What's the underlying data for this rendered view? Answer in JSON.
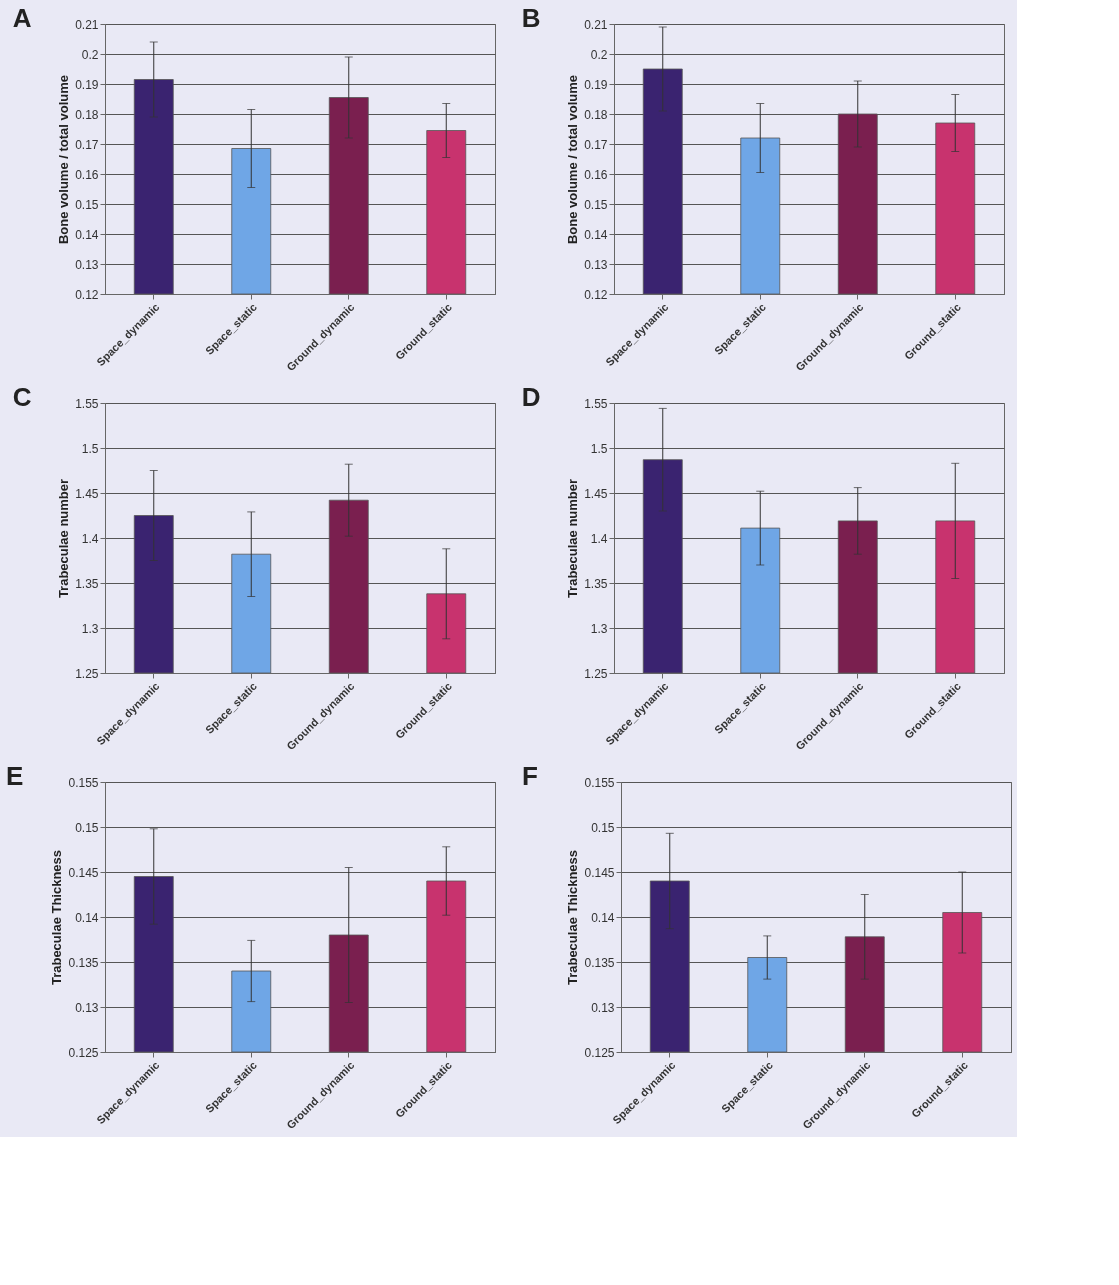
{
  "chart_data": [
    {
      "type": "bar",
      "title": "A",
      "ylabel": "Bone volume / total volume",
      "categories": [
        "Space_dynamic",
        "Space_static",
        "Ground_dynamic",
        "Ground_static"
      ],
      "values": [
        0.1915,
        0.1685,
        0.1855,
        0.1745
      ],
      "errors": [
        0.0125,
        0.013,
        0.0135,
        0.009
      ],
      "colors": [
        "#3a2370",
        "#6fa6e6",
        "#7a1f4f",
        "#c8336e"
      ],
      "ylim": [
        0.12,
        0.21
      ],
      "yticks": [
        0.12,
        0.13,
        0.14,
        0.15,
        0.16,
        0.17,
        0.18,
        0.19,
        0.2,
        0.21
      ],
      "grid": "y"
    },
    {
      "type": "bar",
      "title": "B",
      "ylabel": "Bone volume / total volume",
      "categories": [
        "Space_dynamic",
        "Space_static",
        "Ground_dynamic",
        "Ground_static"
      ],
      "values": [
        0.195,
        0.172,
        0.18,
        0.177
      ],
      "errors": [
        0.014,
        0.0115,
        0.011,
        0.0095
      ],
      "colors": [
        "#3a2370",
        "#6fa6e6",
        "#7a1f4f",
        "#c8336e"
      ],
      "ylim": [
        0.12,
        0.21
      ],
      "yticks": [
        0.12,
        0.13,
        0.14,
        0.15,
        0.16,
        0.17,
        0.18,
        0.19,
        0.2,
        0.21
      ],
      "grid": "y"
    },
    {
      "type": "bar",
      "title": "C",
      "ylabel": "Trabeculae number",
      "categories": [
        "Space_dynamic",
        "Space_static",
        "Ground_dynamic",
        "Ground_static"
      ],
      "values": [
        1.425,
        1.382,
        1.442,
        1.338
      ],
      "errors": [
        0.05,
        0.047,
        0.04,
        0.05
      ],
      "colors": [
        "#3a2370",
        "#6fa6e6",
        "#7a1f4f",
        "#c8336e"
      ],
      "ylim": [
        1.25,
        1.55
      ],
      "yticks": [
        1.25,
        1.3,
        1.35,
        1.4,
        1.45,
        1.5,
        1.55
      ],
      "grid": "y"
    },
    {
      "type": "bar",
      "title": "D",
      "ylabel": "Trabeculae number",
      "categories": [
        "Space_dynamic",
        "Space_static",
        "Ground_dynamic",
        "Ground_static"
      ],
      "values": [
        1.487,
        1.411,
        1.419,
        1.419
      ],
      "errors": [
        0.057,
        0.041,
        0.037,
        0.064
      ],
      "colors": [
        "#3a2370",
        "#6fa6e6",
        "#7a1f4f",
        "#c8336e"
      ],
      "ylim": [
        1.25,
        1.55
      ],
      "yticks": [
        1.25,
        1.3,
        1.35,
        1.4,
        1.45,
        1.5,
        1.55
      ],
      "grid": "y"
    },
    {
      "type": "bar",
      "title": "E",
      "ylabel": "Trabeculae Thickness",
      "categories": [
        "Space_dynamic",
        "Space_static",
        "Ground_dynamic",
        "Ground_static"
      ],
      "values": [
        0.1445,
        0.134,
        0.138,
        0.144
      ],
      "errors": [
        0.0053,
        0.0034,
        0.0075,
        0.0038
      ],
      "colors": [
        "#3a2370",
        "#6fa6e6",
        "#7a1f4f",
        "#c8336e"
      ],
      "ylim": [
        0.125,
        0.155
      ],
      "yticks": [
        0.125,
        0.13,
        0.135,
        0.14,
        0.145,
        0.15,
        0.155
      ],
      "grid": "y"
    },
    {
      "type": "bar",
      "title": "F",
      "ylabel": "Trabeculae Thickness",
      "categories": [
        "Space_dynamic",
        "Space_static",
        "Ground_dynamic",
        "Ground_static"
      ],
      "values": [
        0.144,
        0.1355,
        0.1378,
        0.1405
      ],
      "errors": [
        0.0053,
        0.0024,
        0.0047,
        0.0045
      ],
      "colors": [
        "#3a2370",
        "#6fa6e6",
        "#7a1f4f",
        "#c8336e"
      ],
      "ylim": [
        0.125,
        0.155
      ],
      "yticks": [
        0.125,
        0.13,
        0.135,
        0.14,
        0.145,
        0.15,
        0.155
      ],
      "grid": "y"
    }
  ]
}
